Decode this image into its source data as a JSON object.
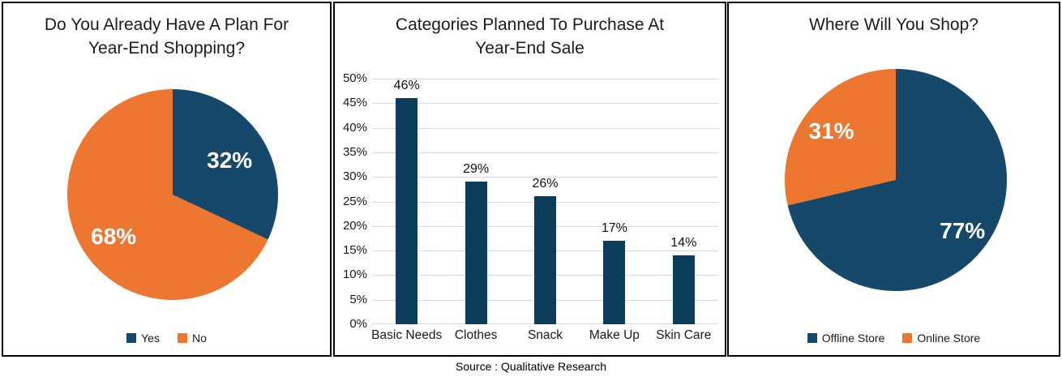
{
  "colors": {
    "navy": "#16486A",
    "bar_navy": "#0C3E5C",
    "orange": "#ED7631",
    "gridline": "#D9D9D9",
    "border": "#000000",
    "pie_label_text": "#FFFFFF"
  },
  "footer": {
    "source_label": "Source : Qualitative Research"
  },
  "chart_data": [
    {
      "type": "pie",
      "title": "Do You Already Have A Plan For Year-End Shopping?",
      "title_lines": [
        "Do You Already Have A Plan For",
        "Year-End Shopping?"
      ],
      "slices": [
        {
          "label": "Yes",
          "value": 32,
          "display": "32%",
          "color_key": "navy"
        },
        {
          "label": "No",
          "value": 68,
          "display": "68%",
          "color_key": "orange"
        }
      ],
      "legend_position": "bottom"
    },
    {
      "type": "bar",
      "title": "Categories Planned To Purchase At Year-End Sale",
      "title_lines": [
        "Categories Planned To Purchase At",
        "Year-End Sale"
      ],
      "categories": [
        "Basic Needs",
        "Clothes",
        "Snack",
        "Make Up",
        "Skin Care"
      ],
      "values": [
        46,
        29,
        26,
        17,
        14
      ],
      "data_labels": [
        "46%",
        "29%",
        "26%",
        "17%",
        "14%"
      ],
      "y_ticks": [
        "0%",
        "5%",
        "10%",
        "15%",
        "20%",
        "25%",
        "30%",
        "35%",
        "40%",
        "45%",
        "50%"
      ],
      "ylim": [
        0,
        50
      ],
      "grid": true,
      "bar_color_key": "bar_navy",
      "legend_position": "none"
    },
    {
      "type": "pie",
      "title": "Where Will You Shop?",
      "title_lines": [
        "Where Will You Shop?"
      ],
      "slices": [
        {
          "label": "Offline Store",
          "value": 77,
          "display": "77%",
          "color_key": "navy"
        },
        {
          "label": "Online Store",
          "value": 31,
          "display": "31%",
          "color_key": "orange"
        }
      ],
      "legend_position": "bottom"
    }
  ]
}
